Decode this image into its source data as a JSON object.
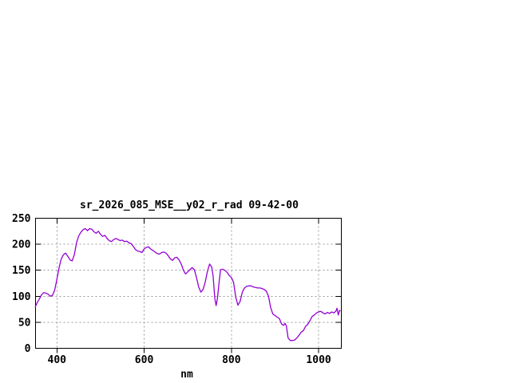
{
  "window": {
    "background": "#ffffff"
  },
  "colors": {
    "frame": "#000000",
    "grid": "#999999",
    "text": "#000000",
    "line": "#9400d3"
  },
  "chart_data": {
    "type": "line",
    "title": "sr_2026_085_MSE__y02_r_rad 09-42-00",
    "xlabel": "nm",
    "ylabel": "",
    "xlim": [
      351,
      1052
    ],
    "ylim": [
      0,
      250
    ],
    "x_ticks": [
      400,
      600,
      800,
      1000
    ],
    "y_ticks": [
      0,
      50,
      100,
      150,
      200,
      250
    ],
    "grid": "dotted",
    "legend_position": "none",
    "line_color": "#9400d3",
    "series": [
      {
        "x": [
          350,
          355,
          360,
          365,
          370,
          375,
          380,
          385,
          390,
          395,
          400,
          405,
          410,
          415,
          420,
          425,
          430,
          435,
          440,
          445,
          450,
          455,
          460,
          465,
          470,
          475,
          480,
          485,
          490,
          495,
          500,
          505,
          510,
          515,
          520,
          525,
          530,
          535,
          540,
          545,
          550,
          555,
          560,
          565,
          570,
          575,
          580,
          585,
          590,
          595,
          600,
          605,
          610,
          615,
          620,
          625,
          630,
          635,
          640,
          645,
          650,
          655,
          660,
          665,
          670,
          675,
          680,
          685,
          690,
          695,
          700,
          705,
          710,
          715,
          720,
          725,
          730,
          735,
          740,
          745,
          750,
          755,
          758,
          762,
          765,
          768,
          772,
          775,
          780,
          785,
          790,
          795,
          800,
          805,
          810,
          815,
          820,
          825,
          830,
          835,
          840,
          845,
          850,
          855,
          860,
          865,
          870,
          875,
          880,
          885,
          890,
          895,
          900,
          905,
          910,
          915,
          920,
          923,
          926,
          930,
          935,
          940,
          945,
          950,
          955,
          960,
          965,
          970,
          975,
          980,
          985,
          990,
          995,
          1000,
          1005,
          1010,
          1015,
          1020,
          1025,
          1030,
          1035,
          1040,
          1042,
          1045,
          1048,
          1050
        ],
        "y": [
          79,
          88,
          95,
          103,
          107,
          106,
          104,
          100,
          102,
          112,
          133,
          155,
          172,
          180,
          183,
          177,
          170,
          168,
          180,
          203,
          216,
          223,
          228,
          230,
          226,
          230,
          229,
          224,
          221,
          225,
          219,
          215,
          217,
          211,
          207,
          205,
          209,
          211,
          209,
          207,
          208,
          205,
          206,
          203,
          201,
          196,
          190,
          187,
          186,
          184,
          191,
          194,
          195,
          191,
          188,
          185,
          182,
          181,
          184,
          185,
          183,
          178,
          172,
          169,
          174,
          175,
          170,
          162,
          150,
          143,
          147,
          151,
          155,
          151,
          136,
          118,
          108,
          113,
          127,
          148,
          162,
          156,
          139,
          95,
          82,
          96,
          128,
          151,
          152,
          150,
          146,
          140,
          136,
          127,
          98,
          83,
          90,
          108,
          116,
          119,
          120,
          120,
          118,
          117,
          116,
          116,
          115,
          113,
          110,
          100,
          78,
          66,
          63,
          60,
          57,
          47,
          44,
          48,
          43,
          20,
          15,
          15,
          16,
          20,
          25,
          31,
          34,
          42,
          46,
          53,
          61,
          64,
          68,
          70,
          71,
          68,
          66,
          69,
          67,
          70,
          68,
          72,
          77,
          64,
          73,
          72
        ]
      }
    ]
  }
}
